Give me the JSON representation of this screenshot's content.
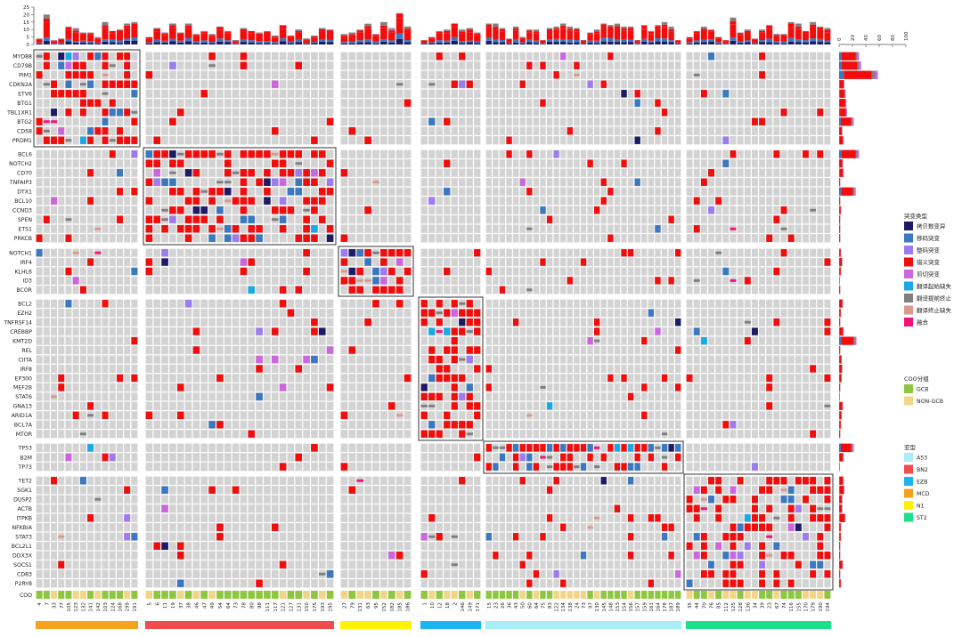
{
  "chart_data": {
    "type": "heatmap",
    "title": "",
    "top_axis": {
      "ticks": [
        0,
        5,
        10,
        15,
        20,
        25
      ]
    },
    "right_axis": {
      "ticks": [
        0,
        20,
        40,
        60,
        80,
        100
      ]
    },
    "gene_groups": [
      [
        "MYD88",
        "CD79B",
        "PIM1",
        "CDKN2A",
        "ETV6",
        "BTG1",
        "TBL1XR1",
        "BTG2",
        "CD58",
        "PRDM1"
      ],
      [
        "BCL6",
        "NOTCH2",
        "CD70",
        "TNFAIP3",
        "DTX1",
        "BCL10",
        "CCND3",
        "SPEN",
        "ETS1",
        "PRKCB"
      ],
      [
        "NOTCH1",
        "IRF4",
        "KLHL6",
        "ID3",
        "BCOR"
      ],
      [
        "BCL2",
        "EZH2",
        "TNFRSF14",
        "CREBBP",
        "KMT2D",
        "REL",
        "CIITA",
        "IRF8",
        "EP300",
        "MEF2B",
        "STAT6",
        "GNA13",
        "ARID1A",
        "BCL7A",
        "MTOR"
      ],
      [
        "TP53",
        "B2M",
        "TP73"
      ],
      [
        "TET2",
        "SGK1",
        "DUSP2",
        "ACTB",
        "ITPKB",
        "NFKBIA",
        "STAT3",
        "BCL2L1",
        "DDX3X",
        "SOCS1",
        "CD83",
        "P2RY8"
      ]
    ],
    "sample_groups": [
      {
        "subtype": "MCD",
        "color": "#F7A21B",
        "samples": [
          "4",
          "7",
          "33",
          "77",
          "105",
          "123",
          "132",
          "141",
          "142",
          "103",
          "124",
          "168",
          "199",
          "191"
        ]
      },
      {
        "subtype": "BN2",
        "color": "#F04B4E",
        "samples": [
          "5",
          "6",
          "11",
          "19",
          "37",
          "38",
          "46",
          "47",
          "49",
          "54",
          "64",
          "73",
          "78",
          "80",
          "98",
          "111",
          "117",
          "121",
          "127",
          "131",
          "150",
          "175",
          "193",
          "195"
        ]
      },
      {
        "subtype": "N1",
        "color": "#FFF200",
        "samples": [
          "27",
          "79",
          "131",
          "63",
          "95",
          "152",
          "182",
          "185",
          "186"
        ]
      },
      {
        "subtype": "EZB",
        "color": "#1CB5F0",
        "samples": [
          "1",
          "10",
          "12",
          "18",
          "2",
          "146",
          "149",
          "171"
        ]
      },
      {
        "subtype": "A53",
        "color": "#A8EEF7",
        "samples": [
          "15",
          "23",
          "26",
          "36",
          "43",
          "50",
          "60",
          "64",
          "75",
          "83",
          "122",
          "134",
          "138",
          "24",
          "73",
          "97",
          "130",
          "145",
          "148",
          "153",
          "154",
          "156",
          "157",
          "159",
          "161",
          "164",
          "178",
          "187",
          "189"
        ]
      },
      {
        "subtype": "ST2",
        "color": "#1FE08A",
        "samples": [
          "35",
          "44",
          "70",
          "76",
          "85",
          "112",
          "125",
          "128",
          "136",
          "34",
          "39",
          "23",
          "67",
          "74",
          "116",
          "155",
          "170",
          "179",
          "190",
          "194"
        ]
      }
    ],
    "mutation_types": [
      {
        "key": "cnv",
        "label": "拷贝数变异",
        "color": "#1D1B66"
      },
      {
        "key": "frameshift",
        "label": "移码突变",
        "color": "#3A78BF"
      },
      {
        "key": "inframe",
        "label": "整码突变",
        "color": "#9D7BF0"
      },
      {
        "key": "missense",
        "label": "错义突变",
        "color": "#F20D0D"
      },
      {
        "key": "splice",
        "label": "剪切突变",
        "color": "#CC66DD"
      },
      {
        "key": "start_lost",
        "label": "翻译起始缺失",
        "color": "#19A9E6"
      },
      {
        "key": "nonsense",
        "label": "翻译提前终止",
        "color": "#7F7F7F"
      },
      {
        "key": "stop_lost",
        "label": "翻译终止缺失",
        "color": "#D9998C"
      },
      {
        "key": "fusion",
        "label": "融合",
        "color": "#F2127B"
      }
    ],
    "coo_groups": [
      {
        "label": "GCB",
        "color": "#8DC63F"
      },
      {
        "label": "NON-GCB",
        "color": "#F3D58A"
      }
    ],
    "row_totals": [
      30,
      33,
      58,
      8,
      10,
      11,
      12,
      22,
      5,
      7,
      30,
      6,
      7,
      2,
      25,
      2,
      3,
      2,
      2,
      2,
      3,
      5,
      3,
      1,
      2,
      6,
      3,
      2,
      7,
      26,
      2,
      4,
      5,
      4,
      2,
      1,
      6,
      4,
      3,
      2,
      22,
      7,
      1,
      7,
      8,
      5,
      5,
      10,
      3,
      3,
      2,
      2,
      6,
      2,
      3
    ],
    "legend": {
      "mutation_title": "突变类型",
      "coo_title": "COO分组",
      "subtype_title": "亚型",
      "coo_row_label": "COO"
    }
  }
}
